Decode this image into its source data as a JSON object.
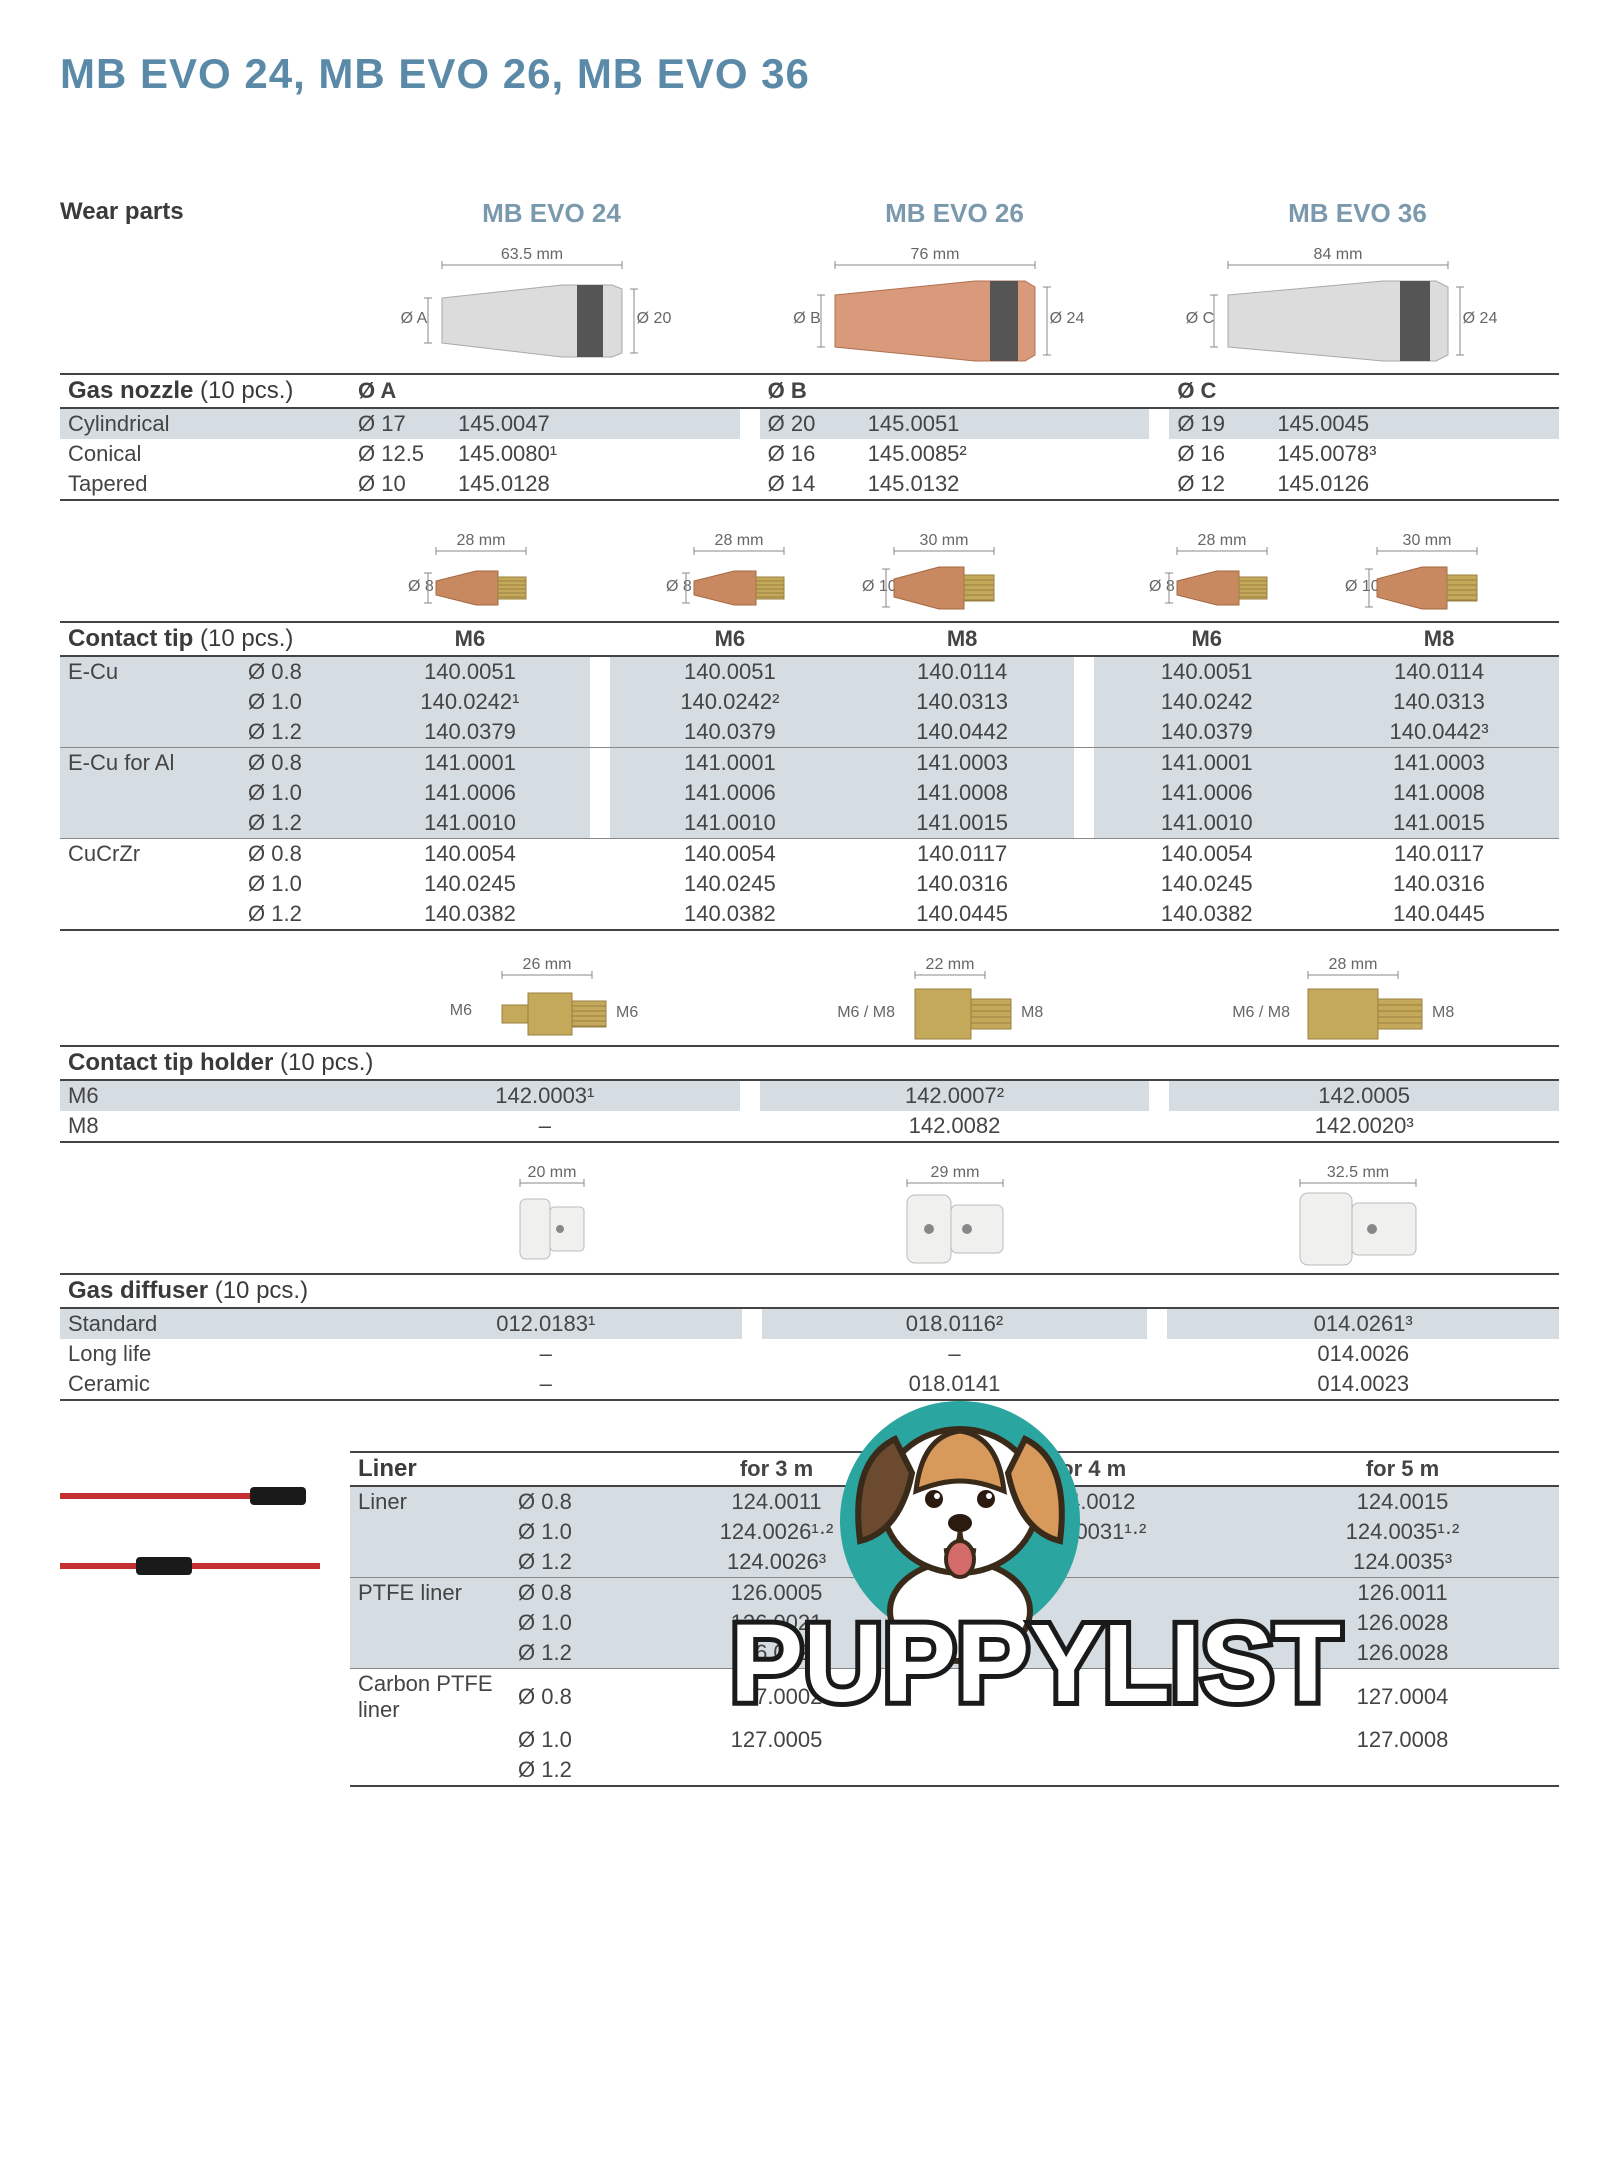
{
  "title": "MB EVO 24, MB EVO 26, MB EVO 36",
  "colors": {
    "title": "#5a8aa8",
    "model_heading": "#7a99ad",
    "text": "#3a3a3a",
    "shade": "#d5dde2",
    "rule": "#444444",
    "nozzle_silver": "#dcdcdc",
    "nozzle_copper": "#d89a7a",
    "nozzle_ring": "#555555",
    "tip_copper": "#c88860",
    "holder_brass": "#c4a95a",
    "diffuser_white": "#f0f0ee",
    "liner_red": "#c43030",
    "puppy_teal": "#2aa5a0",
    "puppy_tan": "#d89a5a",
    "puppy_brown": "#6b4a2f"
  },
  "wear_parts_label": "Wear parts",
  "models": {
    "m24": "MB EVO 24",
    "m26": "MB EVO 26",
    "m36": "MB EVO 36"
  },
  "nozzle_diagrams": {
    "m24": {
      "length": "63.5 mm",
      "left": "Ø A",
      "right": "Ø 20"
    },
    "m26": {
      "length": "76 mm",
      "left": "Ø B",
      "right": "Ø 24"
    },
    "m36": {
      "length": "84 mm",
      "left": "Ø C",
      "right": "Ø 24"
    }
  },
  "gas_nozzle": {
    "label": "Gas nozzle",
    "qty": "(10 pcs.)",
    "header": {
      "a": "Ø A",
      "b": "Ø B",
      "c": "Ø C"
    },
    "rows": [
      {
        "name": "Cylindrical",
        "a_dia": "Ø 17",
        "a_pn": "145.0047",
        "b_dia": "Ø 20",
        "b_pn": "145.0051",
        "c_dia": "Ø 19",
        "c_pn": "145.0045"
      },
      {
        "name": "Conical",
        "a_dia": "Ø 12.5",
        "a_pn": "145.0080¹",
        "b_dia": "Ø 16",
        "b_pn": "145.0085²",
        "c_dia": "Ø 16",
        "c_pn": "145.0078³"
      },
      {
        "name": "Tapered",
        "a_dia": "Ø 10",
        "a_pn": "145.0128",
        "b_dia": "Ø 14",
        "b_pn": "145.0132",
        "c_dia": "Ø 12",
        "c_pn": "145.0126"
      }
    ]
  },
  "tip_diagrams": {
    "c1": {
      "length": "28 mm",
      "dia": "Ø 8"
    },
    "c2": {
      "length": "28 mm",
      "dia": "Ø 8"
    },
    "c3": {
      "length": "30 mm",
      "dia": "Ø 10"
    },
    "c4": {
      "length": "28 mm",
      "dia": "Ø 8"
    },
    "c5": {
      "length": "30 mm",
      "dia": "Ø 10"
    }
  },
  "contact_tip": {
    "label": "Contact tip",
    "qty": "(10 pcs.)",
    "header": {
      "c1": "M6",
      "c2": "M6",
      "c3": "M8",
      "c4": "M6",
      "c5": "M8"
    },
    "groups": [
      {
        "material": "E-Cu",
        "rows": [
          {
            "dia": "Ø 0.8",
            "c1": "140.0051",
            "c2": "140.0051",
            "c3": "140.0114",
            "c4": "140.0051",
            "c5": "140.0114"
          },
          {
            "dia": "Ø 1.0",
            "c1": "140.0242¹",
            "c2": "140.0242²",
            "c3": "140.0313",
            "c4": "140.0242",
            "c5": "140.0313"
          },
          {
            "dia": "Ø 1.2",
            "c1": "140.0379",
            "c2": "140.0379",
            "c3": "140.0442",
            "c4": "140.0379",
            "c5": "140.0442³"
          }
        ]
      },
      {
        "material": "E-Cu for Al",
        "rows": [
          {
            "dia": "Ø 0.8",
            "c1": "141.0001",
            "c2": "141.0001",
            "c3": "141.0003",
            "c4": "141.0001",
            "c5": "141.0003"
          },
          {
            "dia": "Ø 1.0",
            "c1": "141.0006",
            "c2": "141.0006",
            "c3": "141.0008",
            "c4": "141.0006",
            "c5": "141.0008"
          },
          {
            "dia": "Ø 1.2",
            "c1": "141.0010",
            "c2": "141.0010",
            "c3": "141.0015",
            "c4": "141.0010",
            "c5": "141.0015"
          }
        ]
      },
      {
        "material": "CuCrZr",
        "rows": [
          {
            "dia": "Ø 0.8",
            "c1": "140.0054",
            "c2": "140.0054",
            "c3": "140.0117",
            "c4": "140.0054",
            "c5": "140.0117"
          },
          {
            "dia": "Ø 1.0",
            "c1": "140.0245",
            "c2": "140.0245",
            "c3": "140.0316",
            "c4": "140.0245",
            "c5": "140.0316"
          },
          {
            "dia": "Ø 1.2",
            "c1": "140.0382",
            "c2": "140.0382",
            "c3": "140.0445",
            "c4": "140.0382",
            "c5": "140.0445"
          }
        ]
      }
    ]
  },
  "holder_diagrams": {
    "h1": {
      "length": "26 mm",
      "left": "M6",
      "right": "M6"
    },
    "h2": {
      "length": "22 mm",
      "left": "M6 / M8",
      "right": "M8"
    },
    "h3": {
      "length": "28 mm",
      "left": "M6 / M8",
      "right": "M8"
    }
  },
  "contact_tip_holder": {
    "label": "Contact tip holder",
    "qty": "(10 pcs.)",
    "rows": [
      {
        "name": "M6",
        "c1": "142.0003¹",
        "c2": "142.0007²",
        "c3": "142.0005"
      },
      {
        "name": "M8",
        "c1": "–",
        "c2": "142.0082",
        "c3": "142.0020³"
      }
    ]
  },
  "diffuser_diagrams": {
    "d1": {
      "length": "20 mm"
    },
    "d2": {
      "length": "29 mm"
    },
    "d3": {
      "length": "32.5 mm"
    }
  },
  "gas_diffuser": {
    "label": "Gas diffuser",
    "qty": "(10 pcs.)",
    "rows": [
      {
        "name": "Standard",
        "c1": "012.0183¹",
        "c2": "018.0116²",
        "c3": "014.0261³"
      },
      {
        "name": "Long life",
        "c1": "–",
        "c2": "–",
        "c3": "014.0026"
      },
      {
        "name": "Ceramic",
        "c1": "–",
        "c2": "018.0141",
        "c3": "014.0023"
      }
    ]
  },
  "liner": {
    "label": "Liner",
    "header": {
      "c1": "for 3 m",
      "c2": "for 4 m",
      "c3": "for 5 m"
    },
    "groups": [
      {
        "material": "Liner",
        "rows": [
          {
            "dia": "Ø 0.8",
            "c1": "124.0011",
            "c2": "124.0012",
            "c3": "124.0015"
          },
          {
            "dia": "Ø 1.0",
            "c1": "124.0026¹·²",
            "c2": "124.0031¹·²",
            "c3": "124.0035¹·²"
          },
          {
            "dia": "Ø 1.2",
            "c1": "124.0026³",
            "c2": "",
            "c3": "124.0035³"
          }
        ]
      },
      {
        "material": "PTFE liner",
        "rows": [
          {
            "dia": "Ø 0.8",
            "c1": "126.0005",
            "c2": "",
            "c3": "126.0011"
          },
          {
            "dia": "Ø 1.0",
            "c1": "126.0021",
            "c2": "",
            "c3": "126.0028"
          },
          {
            "dia": "Ø 1.2",
            "c1": "126.0021",
            "c2": "",
            "c3": "126.0028"
          }
        ]
      },
      {
        "material": "Carbon PTFE liner",
        "rows": [
          {
            "dia": "Ø 0.8",
            "c1": "127.0002",
            "c2": "",
            "c3": "127.0004"
          },
          {
            "dia": "Ø 1.0",
            "c1": "127.0005",
            "c2": "",
            "c3": "127.0008"
          },
          {
            "dia": "Ø 1.2",
            "c1": "",
            "c2": "",
            "c3": ""
          }
        ]
      }
    ]
  },
  "puppylist_text": "PUPPYLIST"
}
